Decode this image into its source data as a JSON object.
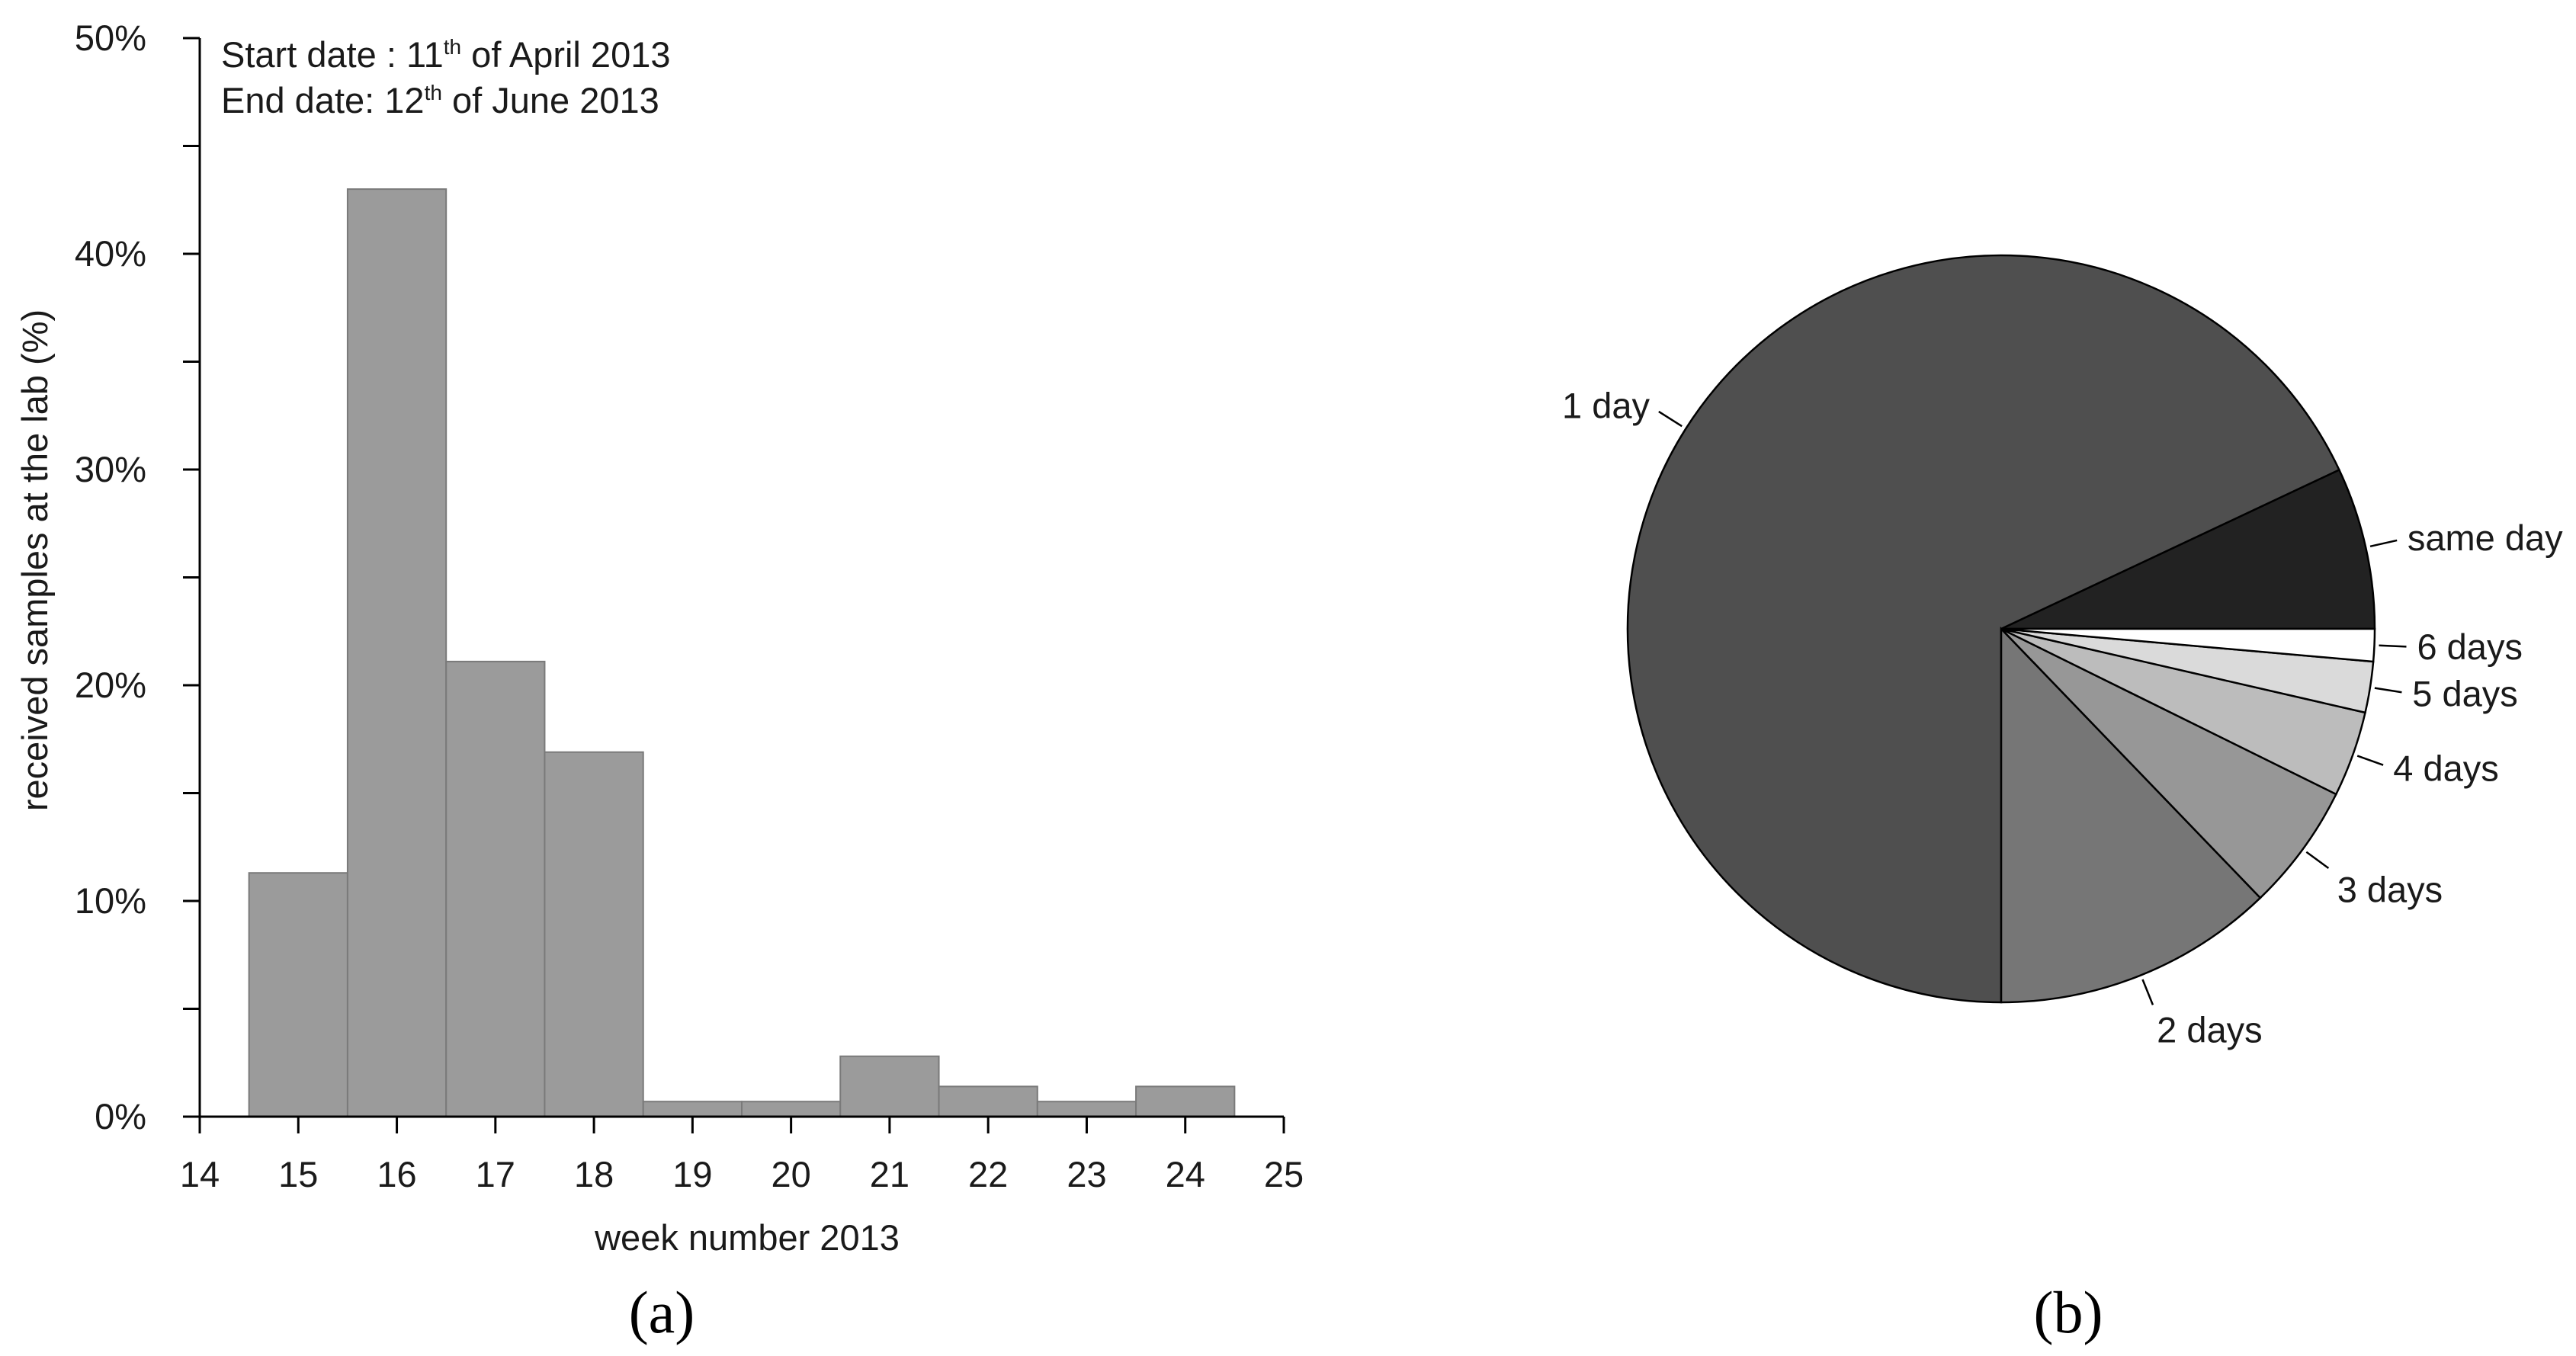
{
  "chart_data": [
    {
      "type": "bar",
      "panel_label": "(a)",
      "xlabel": "week number 2013",
      "ylabel": "received samples at the lab (%)",
      "x": [
        15,
        16,
        17,
        18,
        19,
        20,
        21,
        22,
        23,
        24
      ],
      "values": [
        11.3,
        43.0,
        21.1,
        16.9,
        0.7,
        0.7,
        2.8,
        1.4,
        0.7,
        1.4
      ],
      "xlim": [
        14,
        25
      ],
      "xticks": [
        "14",
        "15",
        "16",
        "17",
        "18",
        "19",
        "20",
        "21",
        "22",
        "23",
        "24",
        "25"
      ],
      "ylim": [
        0,
        50
      ],
      "yticks": [
        "0%",
        "10%",
        "20%",
        "30%",
        "40%",
        "50%"
      ],
      "bar_color": "#9b9b9b",
      "grid": false,
      "annotation": {
        "start_prefix": "Start date : 11",
        "start_sup": "th",
        "start_suffix": " of April 2013",
        "end_prefix": "End date:  12",
        "end_sup": "th",
        "end_suffix": " of June 2013"
      }
    },
    {
      "type": "pie",
      "panel_label": "(b)",
      "slices": [
        {
          "label": "same day",
          "value": 7.0,
          "color": "#222222"
        },
        {
          "label": "1 day",
          "value": 68.0,
          "color": "#4f4f4f"
        },
        {
          "label": "2 days",
          "value": 12.2,
          "color": "#767676"
        },
        {
          "label": "3 days",
          "value": 5.5,
          "color": "#979797"
        },
        {
          "label": "4 days",
          "value": 3.7,
          "color": "#bcbcbc"
        },
        {
          "label": "5 days",
          "value": 2.2,
          "color": "#dadada"
        },
        {
          "label": "6 days",
          "value": 1.4,
          "color": "#ffffff"
        }
      ]
    }
  ]
}
